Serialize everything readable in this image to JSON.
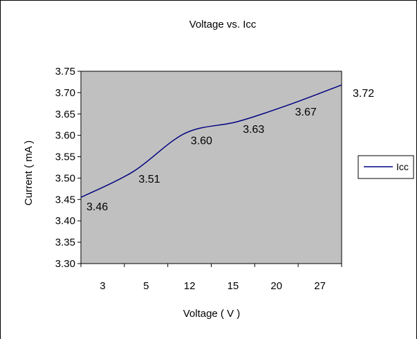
{
  "chart_data": {
    "type": "line",
    "title": "Voltage vs. Icc",
    "xlabel": "Voltage ( V )",
    "ylabel": "Current ( mA )",
    "categories": [
      "3",
      "5",
      "12",
      "15",
      "20",
      "27"
    ],
    "series": [
      {
        "name": "Icc",
        "values": [
          3.455,
          3.515,
          3.605,
          3.632,
          3.672,
          3.718
        ],
        "labels": [
          "3.46",
          "3.51",
          "3.60",
          "3.63",
          "3.67",
          "3.72"
        ]
      }
    ],
    "ylim": [
      3.3,
      3.75
    ],
    "yticks": [
      "3.30",
      "3.35",
      "3.40",
      "3.45",
      "3.50",
      "3.55",
      "3.60",
      "3.65",
      "3.70",
      "3.75"
    ],
    "legend_position": "right",
    "grid": false,
    "colors": {
      "plot_bg": "#c0c0c0",
      "line": "#000080"
    }
  }
}
